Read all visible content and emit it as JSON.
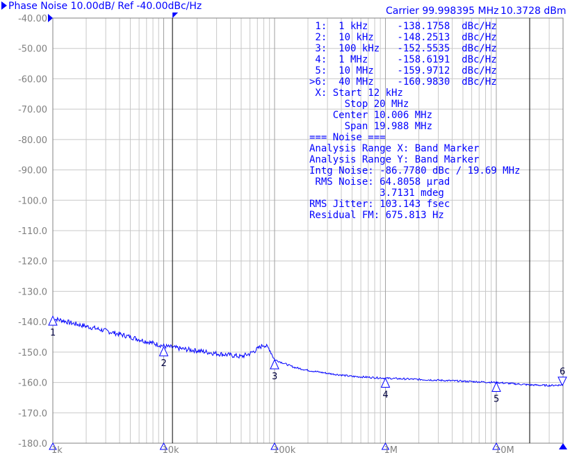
{
  "header": {
    "title": "Phase Noise 10.00dB/ Ref -40.00dBc/Hz",
    "carrier": "Carrier 99.998395 MHz",
    "carrier_power": "10.3728 dBm"
  },
  "readout": [
    " 1:  1 kHz     -138.1758  dBc/Hz",
    " 2:  10 kHz    -148.2513  dBc/Hz",
    " 3:  100 kHz   -152.5535  dBc/Hz",
    " 4:  1 MHz     -158.6191  dBc/Hz",
    " 5:  10 MHz    -159.9712  dBc/Hz",
    ">6:  40 MHz    -160.9830  dBc/Hz",
    " X: Start 12 kHz",
    "      Stop 20 MHz",
    "    Center 10.006 MHz",
    "      Span 19.988 MHz",
    "=== Noise ===",
    "Analysis Range X: Band Marker",
    "Analysis Range Y: Band Marker",
    "Intg Noise: -86.7780 dBc / 19.69 MHz",
    " RMS Noise: 64.8058 µrad",
    "            3.7131 mdeg",
    "RMS Jitter: 103.143 fsec",
    "Residual FM: 675.813 Hz"
  ],
  "chart_data": {
    "type": "line",
    "xscale": "log",
    "xlim": [
      1000,
      40000000
    ],
    "ylim": [
      -180,
      -40
    ],
    "grid": true,
    "yticks": [
      "-40.00",
      "-50.00",
      "-60.00",
      "-70.00",
      "-80.00",
      "-90.00",
      "-100.0",
      "-110.0",
      "-120.0",
      "-130.0",
      "-140.0",
      "-150.0",
      "-160.0",
      "-170.0",
      "-180.0"
    ],
    "xticks": [
      {
        "label": "1k",
        "value": 1000
      },
      {
        "label": "10k",
        "value": 10000
      },
      {
        "label": "100k",
        "value": 100000
      },
      {
        "label": "1M",
        "value": 1000000
      },
      {
        "label": "10M",
        "value": 10000000
      }
    ],
    "band_lines": [
      12000,
      20000000
    ],
    "trace_color": "#0000ff",
    "series": [
      {
        "x": [
          1000,
          1200,
          1500,
          2000,
          3000,
          5000,
          7000,
          10000,
          15000,
          20000,
          30000,
          40000,
          50000,
          60000,
          70000,
          80000,
          90000,
          100000,
          150000,
          200000,
          300000,
          500000,
          1000000,
          2000000,
          5000000,
          10000000,
          20000000,
          30000000,
          40000000
        ],
        "y": [
          -139,
          -139.5,
          -140.5,
          -141.5,
          -143,
          -145,
          -146.5,
          -148,
          -149,
          -149.5,
          -150.5,
          -151,
          -151.5,
          -150.5,
          -149,
          -147.5,
          -149,
          -152.5,
          -155,
          -156,
          -157,
          -158,
          -158.6,
          -159,
          -159.6,
          -160,
          -160.8,
          -161,
          -160.8
        ]
      }
    ],
    "markers": [
      {
        "label": "1",
        "x": 1000,
        "y": -138.1758
      },
      {
        "label": "2",
        "x": 10000,
        "y": -148.2513
      },
      {
        "label": "3",
        "x": 100000,
        "y": -152.5535
      },
      {
        "label": "4",
        "x": 1000000,
        "y": -158.6191
      },
      {
        "label": "5",
        "x": 10000000,
        "y": -159.9712
      },
      {
        "label": "6",
        "x": 40000000,
        "y": -160.983
      }
    ]
  }
}
